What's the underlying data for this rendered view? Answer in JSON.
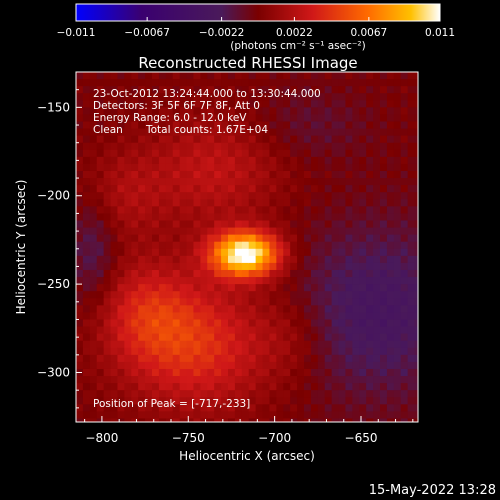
{
  "chart_data": {
    "type": "heatmap",
    "title": "Reconstructed RHESSI Image",
    "xlabel": "Heliocentric X (arcsec)",
    "ylabel": "Heliocentric Y (arcsec)",
    "xlim": [
      -815,
      -617
    ],
    "ylim": [
      -328,
      -130
    ],
    "x_ticks": [
      -800,
      -750,
      -700,
      -650
    ],
    "y_ticks": [
      -150,
      -200,
      -250,
      -300
    ],
    "x_tick_labels": [
      "−800",
      "−750",
      "−700",
      "−650"
    ],
    "y_tick_labels": [
      "−150",
      "−200",
      "−250",
      "−300"
    ],
    "colorbar": {
      "range": [
        -0.011,
        0.011
      ],
      "ticks": [
        -0.011,
        -0.0067,
        -0.0022,
        0.0022,
        0.0067,
        0.011
      ],
      "tick_labels": [
        "−0.011",
        "−0.0067",
        "−0.0022",
        "0.0022",
        "0.0067",
        "0.011"
      ],
      "units": "(photons cm⁻² s⁻¹ asec⁻²)",
      "colormap": [
        "#0000ff",
        "#3a0070",
        "#4a1a5a",
        "#7a0000",
        "#d01818",
        "#ff6a00",
        "#ffc000",
        "#ffffff"
      ]
    },
    "annotations": {
      "time": "23-Oct-2012 13:24:44.000 to 13:30:44.000",
      "detectors": "Detectors: 3F 5F 6F 7F 8F, Att 0",
      "energy": "Energy Range: 6.0 - 12.0 keV",
      "method": "Clean",
      "counts": "Total counts: 1.67E+04",
      "peak": "Position of Peak = [-717,-233]"
    },
    "peak": {
      "x": -717,
      "y": -233,
      "value": 0.011
    },
    "sources": [
      {
        "x": -717,
        "y": -233,
        "sx": 14,
        "sy": 9,
        "amp": 0.0115
      },
      {
        "x": -745,
        "y": -285,
        "sx": 30,
        "sy": 25,
        "amp": 0.0042
      },
      {
        "x": -775,
        "y": -265,
        "sx": 20,
        "sy": 20,
        "amp": 0.0028
      },
      {
        "x": -735,
        "y": -185,
        "sx": 28,
        "sy": 22,
        "amp": 0.0026
      },
      {
        "x": -790,
        "y": -200,
        "sx": 18,
        "sy": 18,
        "amp": 0.0018
      },
      {
        "x": -690,
        "y": -280,
        "sx": 15,
        "sy": 18,
        "amp": 0.0012
      },
      {
        "x": -640,
        "y": -265,
        "sx": 35,
        "sy": 35,
        "amp": -0.003
      },
      {
        "x": -805,
        "y": -230,
        "sx": 10,
        "sy": 25,
        "amp": -0.0022
      },
      {
        "x": -680,
        "y": -160,
        "sx": 25,
        "sy": 15,
        "amp": -0.0012
      }
    ]
  },
  "footer": {
    "timestamp": "15-May-2022 13:28"
  }
}
